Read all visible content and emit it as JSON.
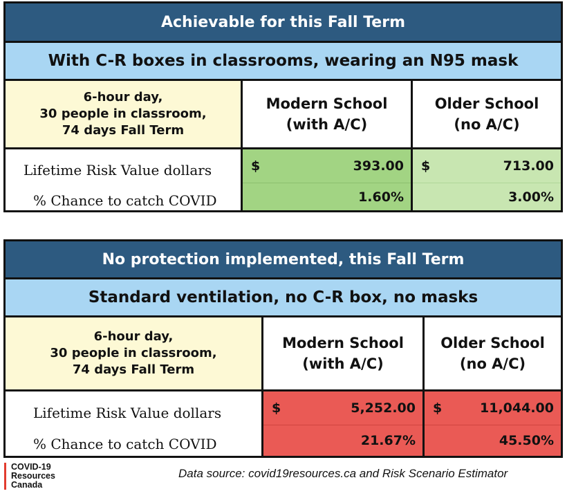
{
  "table1": {
    "title": "Achievable for this Fall Term",
    "subtitle": "With C-R boxes in classrooms, wearing an N95 mask",
    "conditions": [
      "6-hour day,",
      "30 people in classroom,",
      "74 days Fall Term"
    ],
    "modern_header": [
      "Modern School",
      "(with A/C)"
    ],
    "older_header": [
      "Older School",
      "(no A/C)"
    ],
    "risk_label": "Lifetime Risk Value dollars",
    "chance_label": "% Chance to catch COVID",
    "modern_risk_currency": "$",
    "modern_risk_value": "393.00",
    "older_risk_currency": "$",
    "older_risk_value": "713.00",
    "modern_chance": "1.60%",
    "older_chance": "3.00%",
    "modern_color": "#a2d483",
    "older_color": "#c8e6b1"
  },
  "table2": {
    "title": "No protection implemented, this Fall Term",
    "subtitle": "Standard ventilation, no C-R box, no masks",
    "conditions": [
      "6-hour day,",
      "30 people in classroom,",
      "74 days Fall Term"
    ],
    "modern_header": [
      "Modern School",
      "(with A/C)"
    ],
    "older_header": [
      "Older School",
      "(no A/C)"
    ],
    "risk_label": "Lifetime Risk Value dollars",
    "chance_label": "% Chance to catch COVID",
    "modern_risk_currency": "$",
    "modern_risk_value": "5,252.00",
    "older_risk_currency": "$",
    "older_risk_value": "11,044.00",
    "modern_chance": "21.67%",
    "older_chance": "45.50%",
    "value_color": "#ea5a55"
  },
  "footer": {
    "logo_lines": [
      "COVID-19",
      "Resources",
      "Canada"
    ],
    "source": "Data source: covid19resources.ca and Risk Scenario Estimator"
  },
  "colors": {
    "title_bar": "#2d5a80",
    "subtitle_bar": "#a9d6f3",
    "conditions_bg": "#fdf9d5",
    "logo_accent": "#e23b2e"
  }
}
